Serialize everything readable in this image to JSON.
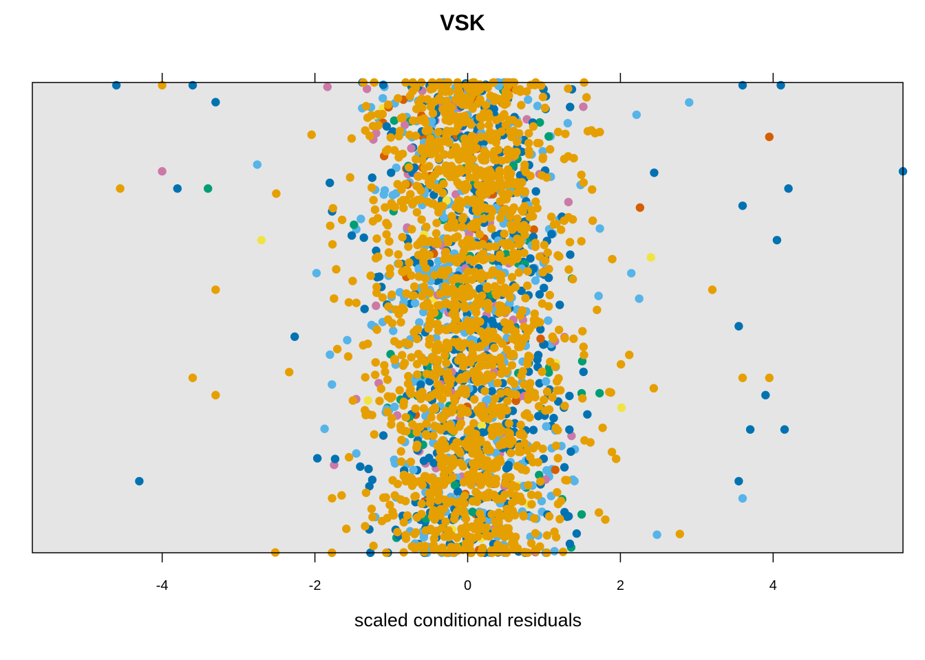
{
  "chart_data": {
    "type": "scatter",
    "title": "VSK",
    "xlabel": "scaled conditional residuals",
    "ylabel": "",
    "xlim": [
      -5.7,
      5.7
    ],
    "x_ticks": [
      -4,
      -2,
      0,
      2,
      4
    ],
    "x_tick_labels": [
      "-4",
      "-2",
      "0",
      "2",
      "4"
    ],
    "x_axis_position": "bottom",
    "top_ticks": true,
    "y_axis_shown": false,
    "grid": false,
    "panel_background": "#e5e5e5",
    "palette": [
      "#0072B2",
      "#56B4E9",
      "#E69F00",
      "#009E73",
      "#CC79A7",
      "#D55E00",
      "#F0E442"
    ],
    "rows": 28,
    "outliers": [
      {
        "x": -4.6,
        "row": 0,
        "color": "#0072B2"
      },
      {
        "x": -4.0,
        "row": 0,
        "color": "#E69F00"
      },
      {
        "x": -3.6,
        "row": 0,
        "color": "#0072B2"
      },
      {
        "x": 3.6,
        "row": 0,
        "color": "#0072B2"
      },
      {
        "x": 4.1,
        "row": 0,
        "color": "#0072B2"
      },
      {
        "x": 2.9,
        "row": 1,
        "color": "#56B4E9"
      },
      {
        "x": 3.95,
        "row": 3,
        "color": "#D55E00"
      },
      {
        "x": -4.0,
        "row": 5,
        "color": "#CC79A7"
      },
      {
        "x": -4.55,
        "row": 6,
        "color": "#E69F00"
      },
      {
        "x": -3.8,
        "row": 6,
        "color": "#0072B2"
      },
      {
        "x": -3.4,
        "row": 6,
        "color": "#009E73"
      },
      {
        "x": 4.2,
        "row": 6,
        "color": "#0072B2"
      },
      {
        "x": 5.7,
        "row": 5,
        "color": "#0072B2"
      },
      {
        "x": 3.6,
        "row": 7,
        "color": "#0072B2"
      },
      {
        "x": -2.7,
        "row": 9,
        "color": "#F0E442"
      },
      {
        "x": 4.05,
        "row": 9,
        "color": "#0072B2"
      },
      {
        "x": 2.4,
        "row": 10,
        "color": "#F0E442"
      },
      {
        "x": 3.55,
        "row": 14,
        "color": "#0072B2"
      },
      {
        "x": -3.6,
        "row": 17,
        "color": "#E69F00"
      },
      {
        "x": -3.3,
        "row": 18,
        "color": "#E69F00"
      },
      {
        "x": 3.6,
        "row": 17,
        "color": "#E69F00"
      },
      {
        "x": 3.95,
        "row": 17,
        "color": "#E69F00"
      },
      {
        "x": 3.9,
        "row": 18,
        "color": "#0072B2"
      },
      {
        "x": 4.15,
        "row": 20,
        "color": "#0072B2"
      },
      {
        "x": 3.7,
        "row": 20,
        "color": "#0072B2"
      },
      {
        "x": -4.3,
        "row": 23,
        "color": "#0072B2"
      },
      {
        "x": 3.55,
        "row": 23,
        "color": "#0072B2"
      },
      {
        "x": 3.6,
        "row": 24,
        "color": "#56B4E9"
      }
    ]
  }
}
